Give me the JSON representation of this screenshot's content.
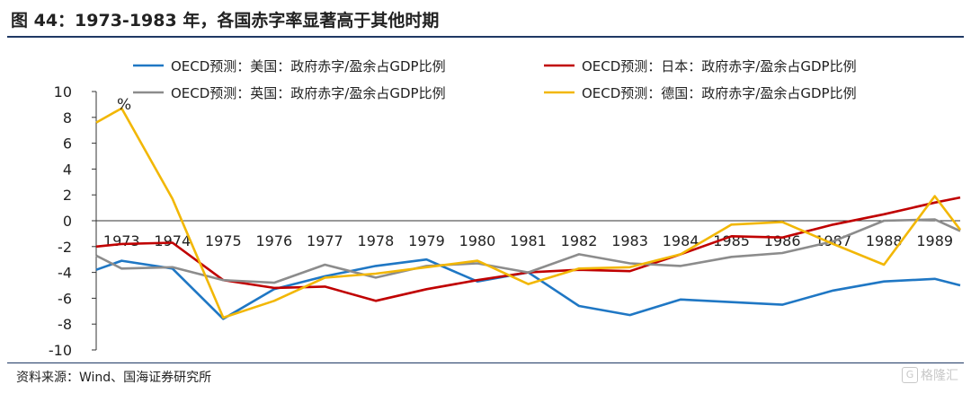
{
  "header": {
    "title": "图 44：1973-1983 年，各国赤字率显著高于其他时期"
  },
  "footer": {
    "source": "资料来源：Wind、国海证券研究所",
    "watermark_text": "格隆汇",
    "watermark_icon": "G"
  },
  "chart_data": {
    "type": "line",
    "title": "",
    "xlabel": "",
    "ylabel": "",
    "y_unit_label": "%",
    "ylim": [
      -10,
      10
    ],
    "yticks": [
      -10,
      -8,
      -6,
      -4,
      -2,
      0,
      2,
      4,
      6,
      8,
      10
    ],
    "x": [
      1972.5,
      1973,
      1974,
      1975,
      1976,
      1977,
      1978,
      1979,
      1980,
      1981,
      1982,
      1983,
      1984,
      1985,
      1986,
      1987,
      1988,
      1989,
      1989.5
    ],
    "x_tick_labels": [
      "1973",
      "1974",
      "1975",
      "1976",
      "1977",
      "1978",
      "1979",
      "1980",
      "1981",
      "1982",
      "1983",
      "1984",
      "1985",
      "1986",
      "1987",
      "1988",
      "1989"
    ],
    "legend_position": "top",
    "grid": false,
    "series": [
      {
        "name": "OECD预测：美国：政府赤字/盈余占GDP比例",
        "color": "#1f77c4",
        "values": [
          -3.8,
          -3.1,
          -3.7,
          -7.6,
          -5.3,
          -4.3,
          -3.5,
          -3.0,
          -4.7,
          -4.0,
          -6.6,
          -7.3,
          -6.1,
          -6.3,
          -6.5,
          -5.4,
          -4.7,
          -4.5,
          -5.0
        ]
      },
      {
        "name": "OECD预测：日本：政府赤字/盈余占GDP比例",
        "color": "#c00000",
        "values": [
          -2.0,
          -1.8,
          -1.7,
          -4.6,
          -5.2,
          -5.1,
          -6.2,
          -5.3,
          -4.6,
          -4.0,
          -3.8,
          -3.9,
          -2.6,
          -1.2,
          -1.3,
          -0.3,
          0.5,
          1.4,
          1.8
        ]
      },
      {
        "name": "OECD预测：英国：政府赤字/盈余占GDP比例",
        "color": "#8c8c8c",
        "values": [
          -2.7,
          -3.7,
          -3.6,
          -4.6,
          -4.8,
          -3.4,
          -4.4,
          -3.5,
          -3.3,
          -4.0,
          -2.6,
          -3.3,
          -3.5,
          -2.8,
          -2.5,
          -1.6,
          0.0,
          0.1,
          -0.8
        ]
      },
      {
        "name": "OECD预测：德国：政府赤字/盈余占GDP比例",
        "color": "#f2b705",
        "values": [
          7.6,
          8.7,
          1.7,
          -7.5,
          -6.2,
          -4.4,
          -4.1,
          -3.6,
          -3.1,
          -4.9,
          -3.7,
          -3.6,
          -2.6,
          -0.3,
          -0.1,
          -1.8,
          -3.4,
          1.9,
          -0.7
        ]
      }
    ]
  }
}
